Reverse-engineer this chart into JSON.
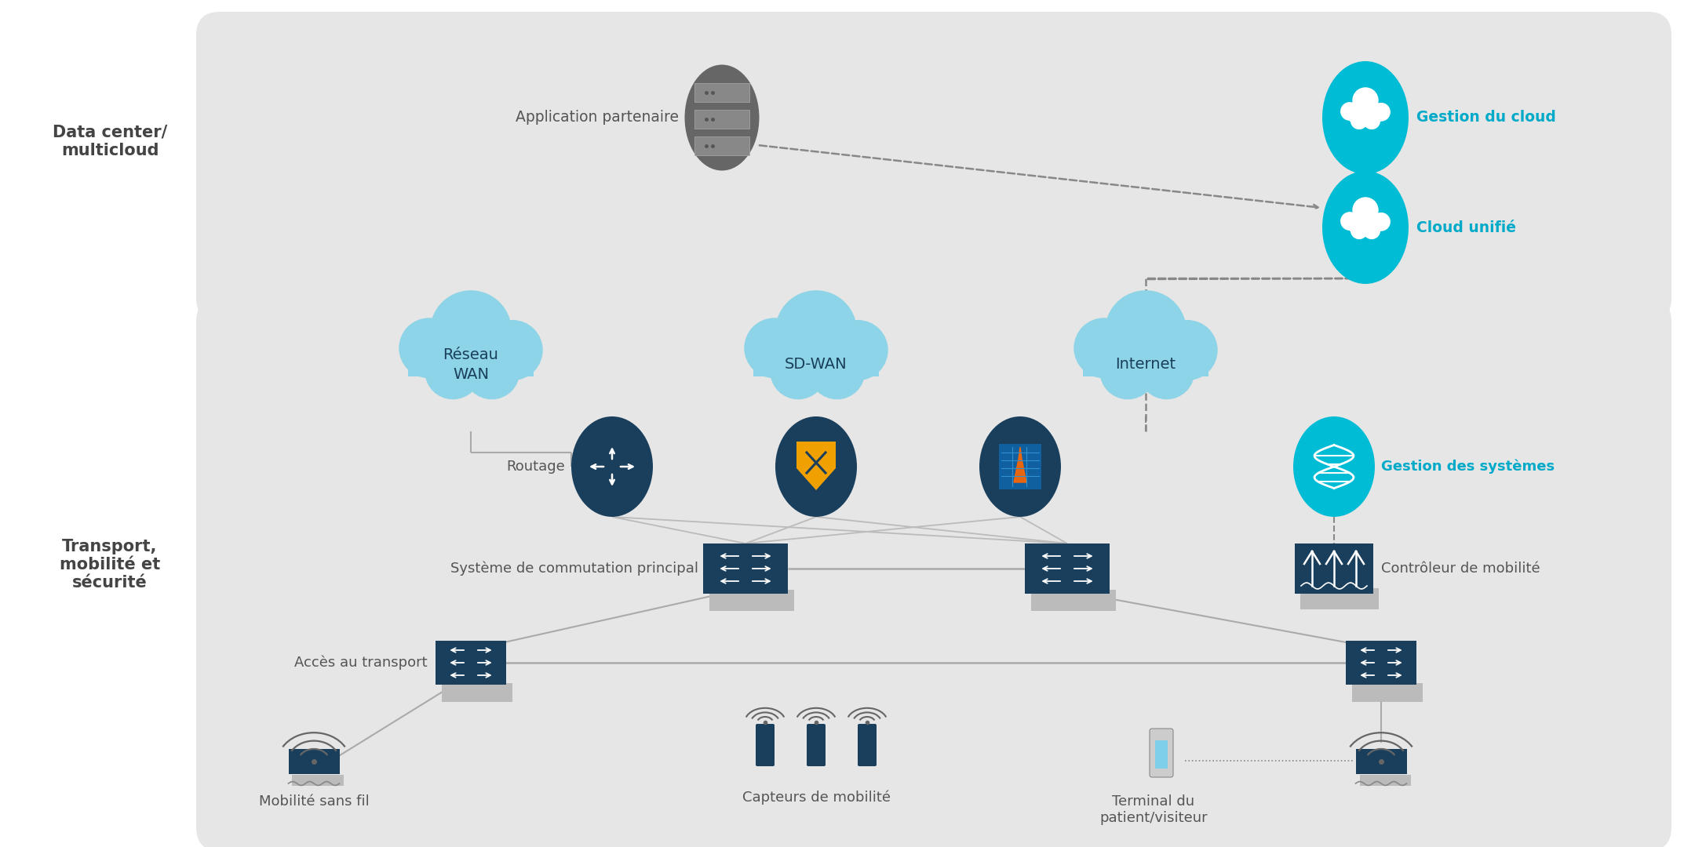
{
  "bg": "#ffffff",
  "zone_bg": "#e6e6e6",
  "cyan": "#00bcd4",
  "light_blue": "#8dd4e8",
  "navy": "#1a3f5c",
  "gray_text": "#555555",
  "gray_line": "#999999",
  "cyan_text": "#00aac8",
  "dark_gray_text": "#444444",
  "zone1_label": "Data center/\nmulticloud",
  "zone2_label": "Transport,\nmobilité et\nsécurité",
  "app_label": "Application partenaire",
  "gestion_cloud_label": "Gestion du cloud",
  "cloud_unifie_label": "Cloud unifié",
  "wan_label": "Réseau\nWAN",
  "sdwan_label": "SD-WAN",
  "inet_label": "Internet",
  "routage_label": "Routage",
  "gsys_label": "Gestion des systèmes",
  "sw_label": "Système de commutation principal",
  "ctrl_label": "Contrôleur de mobilité",
  "acces_label": "Accès au transport",
  "mob_label": "Mobilité sans fil",
  "cap_label": "Capteurs de mobilité",
  "term_label": "Terminal du\npatient/visiteur"
}
